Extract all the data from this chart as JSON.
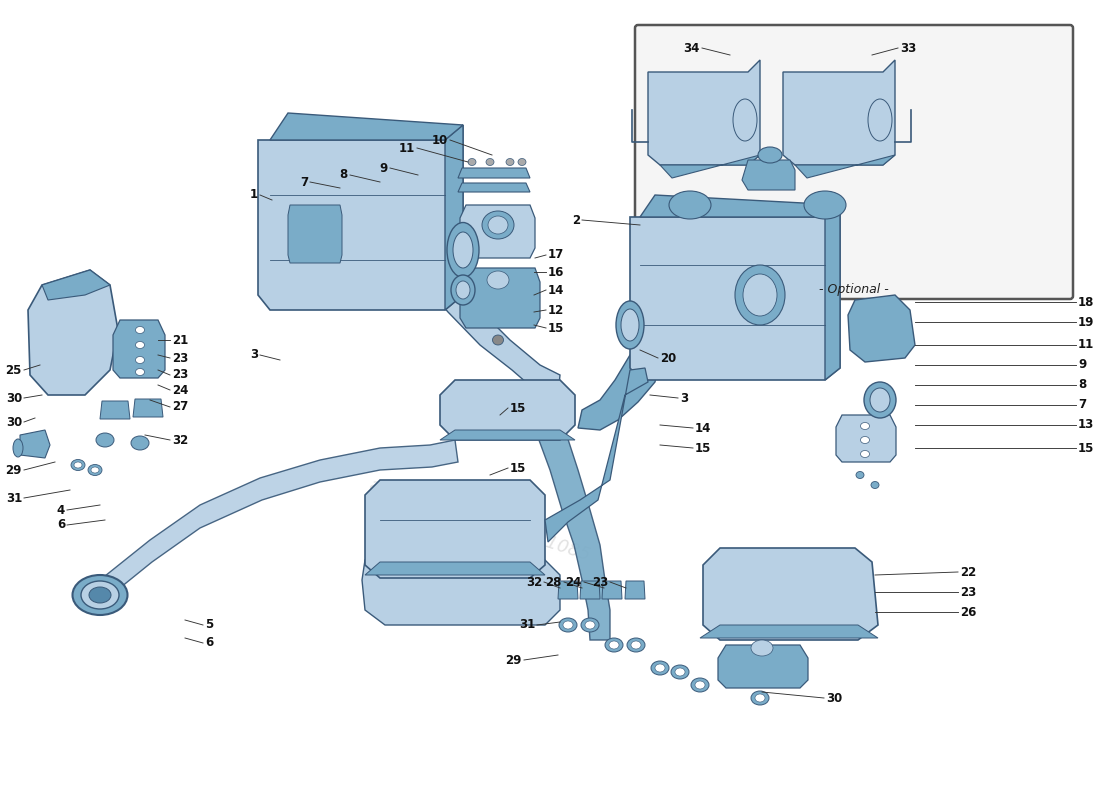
{
  "bg_color": "#ffffff",
  "pc": "#b8d0e4",
  "pm": "#7aacc8",
  "pd": "#5588aa",
  "po": "#3a5a7a",
  "lc": "#222222",
  "optional_label": "- Optional -",
  "fig_w": 11.0,
  "fig_h": 8.0
}
